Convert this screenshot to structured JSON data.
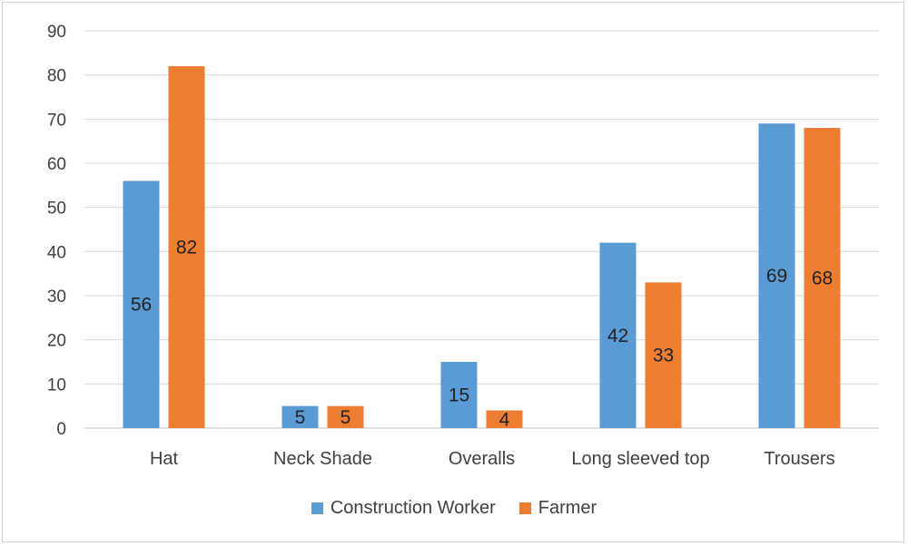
{
  "chart_data": {
    "type": "bar",
    "categories": [
      "Hat",
      "Neck Shade",
      "Overalls",
      "Long sleeved top",
      "Trousers"
    ],
    "series": [
      {
        "name": "Construction Worker",
        "values": [
          56,
          5,
          15,
          42,
          69
        ],
        "color": "#5b9bd5"
      },
      {
        "name": "Farmer",
        "values": [
          82,
          5,
          4,
          33,
          68
        ],
        "color": "#ed7d31"
      }
    ],
    "ylim": [
      0,
      90
    ],
    "yticks": [
      0,
      10,
      20,
      30,
      40,
      50,
      60,
      70,
      80,
      90
    ],
    "grid": true,
    "legend_position": "bottom",
    "title": "",
    "xlabel": "",
    "ylabel": ""
  }
}
